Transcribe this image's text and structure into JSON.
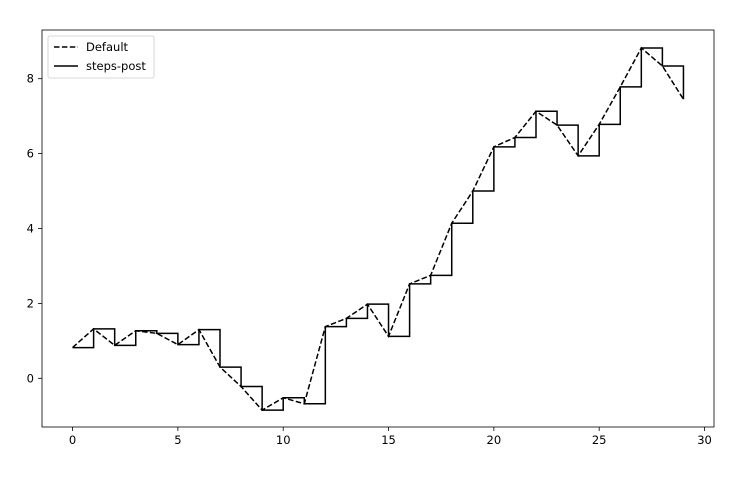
{
  "chart_data": {
    "type": "line",
    "title": "",
    "xlabel": "",
    "ylabel": "",
    "xlim": [
      -1.45,
      30.45
    ],
    "ylim": [
      -1.3,
      9.3
    ],
    "xticks": [
      0,
      5,
      10,
      15,
      20,
      25,
      30
    ],
    "yticks": [
      0,
      2,
      4,
      6,
      8
    ],
    "grid": false,
    "legend": {
      "placement": "top-left",
      "entries": [
        "Default",
        "steps-post"
      ]
    },
    "x": [
      0,
      1,
      2,
      3,
      4,
      5,
      6,
      7,
      8,
      9,
      10,
      11,
      12,
      13,
      14,
      15,
      16,
      17,
      18,
      19,
      20,
      21,
      22,
      23,
      24,
      25,
      26,
      27,
      28,
      29
    ],
    "series": [
      {
        "name": "Default",
        "style": "dashed",
        "color": "#000000",
        "values": [
          0.82,
          1.32,
          0.88,
          1.27,
          1.2,
          0.9,
          1.3,
          0.3,
          -0.22,
          -0.85,
          -0.52,
          -0.68,
          1.38,
          1.6,
          1.98,
          1.12,
          2.52,
          2.75,
          4.14,
          5.0,
          6.18,
          6.43,
          7.13,
          6.76,
          5.94,
          6.78,
          7.78,
          8.82,
          8.34,
          7.45
        ]
      },
      {
        "name": "steps-post",
        "style": "steps-post",
        "color": "#000000",
        "values": [
          0.82,
          1.32,
          0.88,
          1.27,
          1.2,
          0.9,
          1.3,
          0.3,
          -0.22,
          -0.85,
          -0.52,
          -0.68,
          1.38,
          1.6,
          1.98,
          1.12,
          2.52,
          2.75,
          4.14,
          5.0,
          6.18,
          6.43,
          7.13,
          6.76,
          5.94,
          6.78,
          7.78,
          8.82,
          8.34,
          7.45
        ]
      }
    ]
  }
}
